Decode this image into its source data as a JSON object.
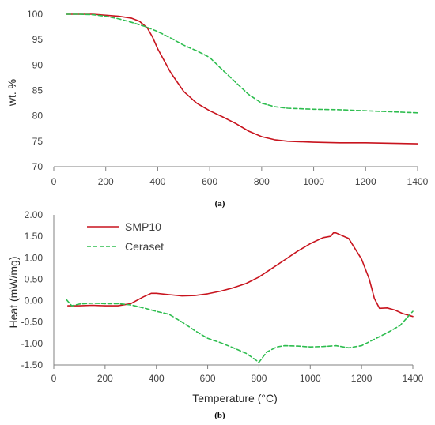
{
  "colors": {
    "SMP10": "#c8141e",
    "Ceraset": "#2ebd4f",
    "axis": "#808080",
    "text": "#404040"
  },
  "chart_data": [
    {
      "type": "line",
      "panel_label": "(a)",
      "ylabel": "wt. %",
      "xlabel": "",
      "xlim": [
        0,
        1400
      ],
      "ylim": [
        70,
        100
      ],
      "xticks": [
        "0",
        "200",
        "400",
        "600",
        "800",
        "1000",
        "1200",
        "1400"
      ],
      "yticks": [
        "70",
        "75",
        "80",
        "85",
        "90",
        "95",
        "100"
      ],
      "series": [
        {
          "key": "SMP10",
          "style": "solid",
          "x": [
            50,
            100,
            150,
            200,
            250,
            300,
            330,
            360,
            380,
            400,
            450,
            500,
            550,
            600,
            650,
            700,
            750,
            800,
            850,
            900,
            1000,
            1100,
            1200,
            1300,
            1400
          ],
          "y": [
            100,
            100,
            100,
            99.8,
            99.6,
            99.2,
            98.6,
            97.3,
            95.5,
            93.2,
            88.5,
            84.8,
            82.5,
            81.0,
            79.8,
            78.5,
            77.0,
            75.9,
            75.3,
            75.0,
            74.8,
            74.7,
            74.7,
            74.6,
            74.5
          ]
        },
        {
          "key": "Ceraset",
          "style": "dashed",
          "x": [
            50,
            100,
            150,
            200,
            250,
            300,
            350,
            400,
            450,
            500,
            550,
            600,
            650,
            700,
            750,
            800,
            850,
            900,
            1000,
            1100,
            1200,
            1300,
            1400
          ],
          "y": [
            100,
            100,
            99.9,
            99.6,
            99.1,
            98.4,
            97.6,
            96.6,
            95.3,
            93.9,
            92.8,
            91.5,
            89.0,
            86.6,
            84.2,
            82.5,
            81.8,
            81.5,
            81.3,
            81.2,
            81.0,
            80.8,
            80.6
          ]
        }
      ]
    },
    {
      "type": "line",
      "panel_label": "(b)",
      "ylabel": "Heat (mW/mg)",
      "xlabel": "Temperature (°C)",
      "xlim": [
        0,
        1400
      ],
      "ylim": [
        -1.5,
        2.0
      ],
      "xticks": [
        "0",
        "200",
        "400",
        "600",
        "800",
        "1000",
        "1200",
        "1400"
      ],
      "yticks": [
        "-1.50",
        "-1.00",
        "-0.50",
        "0.00",
        "0.50",
        "1.00",
        "1.50",
        "2.00"
      ],
      "legend": {
        "position": "top-left"
      },
      "series": [
        {
          "key": "SMP10",
          "name": "SMP10",
          "style": "solid",
          "x": [
            55,
            100,
            150,
            200,
            250,
            300,
            350,
            380,
            400,
            450,
            500,
            550,
            600,
            650,
            700,
            750,
            800,
            850,
            900,
            950,
            1000,
            1050,
            1080,
            1090,
            1100,
            1150,
            1200,
            1230,
            1250,
            1270,
            1300,
            1330,
            1360,
            1400
          ],
          "y": [
            -0.12,
            -0.12,
            -0.11,
            -0.12,
            -0.12,
            -0.07,
            0.09,
            0.17,
            0.17,
            0.14,
            0.11,
            0.12,
            0.16,
            0.22,
            0.3,
            0.4,
            0.55,
            0.75,
            0.95,
            1.15,
            1.33,
            1.47,
            1.5,
            1.58,
            1.58,
            1.45,
            0.97,
            0.5,
            0.05,
            -0.18,
            -0.17,
            -0.22,
            -0.3,
            -0.37
          ]
        },
        {
          "key": "Ceraset",
          "name": "Ceraset",
          "style": "dashed",
          "x": [
            50,
            70,
            100,
            150,
            200,
            250,
            300,
            350,
            400,
            450,
            500,
            550,
            600,
            650,
            700,
            750,
            780,
            800,
            830,
            870,
            900,
            950,
            1000,
            1050,
            1100,
            1150,
            1200,
            1250,
            1300,
            1350,
            1400
          ],
          "y": [
            0.02,
            -0.12,
            -0.08,
            -0.06,
            -0.07,
            -0.07,
            -0.1,
            -0.17,
            -0.25,
            -0.32,
            -0.5,
            -0.7,
            -0.88,
            -0.98,
            -1.1,
            -1.23,
            -1.35,
            -1.44,
            -1.2,
            -1.08,
            -1.05,
            -1.06,
            -1.08,
            -1.07,
            -1.05,
            -1.1,
            -1.05,
            -0.9,
            -0.75,
            -0.58,
            -0.25
          ]
        }
      ]
    }
  ]
}
